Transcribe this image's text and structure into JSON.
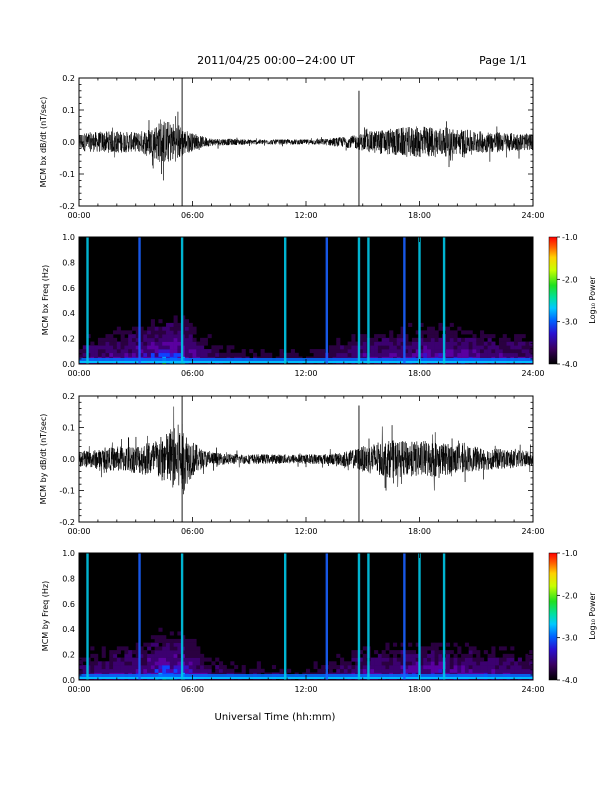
{
  "header": {
    "title": "2011/04/25  00:00−24:00 UT",
    "page": "Page 1/1"
  },
  "footer": {
    "xlabel": "Universal Time (hh:mm)"
  },
  "chart_data": [
    {
      "type": "line",
      "ylabel": "MCM bx dB/dt (nT/sec)",
      "xlim": [
        0,
        24
      ],
      "ylim": [
        -0.2,
        0.2
      ],
      "x_ticks": [
        "00:00",
        "06:00",
        "12:00",
        "18:00",
        "24:00"
      ],
      "y_ticks": [
        "-0.2",
        "-0.1",
        "0.0",
        "0.1",
        "0.2"
      ],
      "noise_envelope": [
        [
          0,
          0.028
        ],
        [
          1,
          0.032
        ],
        [
          2,
          0.035
        ],
        [
          3,
          0.03
        ],
        [
          3.8,
          0.045
        ],
        [
          4.4,
          0.07
        ],
        [
          5.2,
          0.06
        ],
        [
          5.6,
          0.04
        ],
        [
          6.2,
          0.022
        ],
        [
          7,
          0.012
        ],
        [
          9,
          0.008
        ],
        [
          12,
          0.008
        ],
        [
          13,
          0.01
        ],
        [
          14.5,
          0.02
        ],
        [
          15.5,
          0.035
        ],
        [
          17,
          0.045
        ],
        [
          18,
          0.05
        ],
        [
          19.5,
          0.045
        ],
        [
          21,
          0.035
        ],
        [
          24,
          0.025
        ]
      ],
      "spikes": [
        {
          "x": 5.45,
          "ymax": 0.2,
          "ymin": -0.2
        },
        {
          "x": 14.8,
          "ymax": 0.16,
          "ymin": -0.2
        }
      ]
    },
    {
      "type": "heatmap",
      "ylabel": "MCM bx Freq (Hz)",
      "xlim": [
        0,
        24
      ],
      "ylim": [
        0,
        1
      ],
      "x_ticks": [
        "00:00",
        "06:00",
        "12:00",
        "18:00",
        "24:00"
      ],
      "y_ticks": [
        "0.0",
        "0.2",
        "0.4",
        "0.6",
        "0.8",
        "1.0"
      ],
      "colorbar_label": "Log₁₀ Power",
      "colorbar_ticks": [
        "-1.0",
        "-2.0",
        "-3.0",
        "-4.0"
      ],
      "vertical_lines": [
        0.45,
        3.2,
        5.45,
        10.9,
        13.1,
        14.8,
        15.3,
        17.2,
        18.0,
        19.3
      ]
    },
    {
      "type": "line",
      "ylabel": "MCM by dB/dt (nT/sec)",
      "xlim": [
        0,
        24
      ],
      "ylim": [
        -0.2,
        0.2
      ],
      "x_ticks": [
        "00:00",
        "06:00",
        "12:00",
        "18:00",
        "24:00"
      ],
      "y_ticks": [
        "-0.2",
        "-0.1",
        "0.0",
        "0.1",
        "0.2"
      ],
      "noise_envelope": [
        [
          0,
          0.025
        ],
        [
          1,
          0.03
        ],
        [
          2,
          0.04
        ],
        [
          3,
          0.045
        ],
        [
          4,
          0.06
        ],
        [
          4.8,
          0.09
        ],
        [
          5.4,
          0.12
        ],
        [
          5.8,
          0.07
        ],
        [
          6.5,
          0.03
        ],
        [
          7.5,
          0.018
        ],
        [
          9,
          0.015
        ],
        [
          12,
          0.015
        ],
        [
          13.5,
          0.018
        ],
        [
          14.5,
          0.03
        ],
        [
          15.5,
          0.05
        ],
        [
          16.5,
          0.06
        ],
        [
          17.5,
          0.055
        ],
        [
          18.5,
          0.06
        ],
        [
          20,
          0.045
        ],
        [
          21.5,
          0.035
        ],
        [
          24,
          0.025
        ]
      ],
      "spikes": [
        {
          "x": 5.45,
          "ymax": 0.2,
          "ymin": -0.2
        },
        {
          "x": 14.8,
          "ymax": 0.17,
          "ymin": -0.2
        }
      ]
    },
    {
      "type": "heatmap",
      "ylabel": "MCM by Freq (Hz)",
      "xlim": [
        0,
        24
      ],
      "ylim": [
        0,
        1
      ],
      "x_ticks": [
        "00:00",
        "06:00",
        "12:00",
        "18:00",
        "24:00"
      ],
      "y_ticks": [
        "0.0",
        "0.2",
        "0.4",
        "0.6",
        "0.8",
        "1.0"
      ],
      "colorbar_label": "Log₁₀ Power",
      "colorbar_ticks": [
        "-1.0",
        "-2.0",
        "-3.0",
        "-4.0"
      ],
      "vertical_lines": [
        0.45,
        3.2,
        5.45,
        10.9,
        13.1,
        14.8,
        15.3,
        17.2,
        18.0,
        19.3
      ]
    }
  ]
}
